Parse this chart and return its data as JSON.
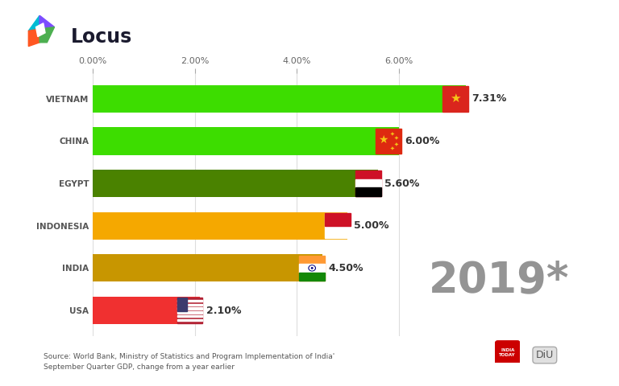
{
  "countries": [
    "VIETNAM",
    "CHINA",
    "EGYPT",
    "INDONESIA",
    "INDIA",
    "USA"
  ],
  "values": [
    7.31,
    6.0,
    5.6,
    5.0,
    4.5,
    2.1
  ],
  "labels": [
    "7.31%",
    "6.00%",
    "5.60%",
    "5.00%",
    "4.50%",
    "2.10%"
  ],
  "bar_colors": [
    "#3ddd00",
    "#3ddd00",
    "#4a8200",
    "#f5a800",
    "#c89600",
    "#f03030"
  ],
  "background_color": "#ffffff",
  "chart_bg": "#f5f5f5",
  "year_text": "2019*",
  "source_text": "Source: World Bank, Ministry of Statistics and Program Implementation of India'\nSeptember Quarter GDP, change from a year earlier",
  "xlim": [
    0,
    8.5
  ],
  "xticks": [
    0,
    2,
    4,
    6
  ],
  "xtick_labels": [
    "0.00%",
    "2.00%",
    "4.00%",
    "6.00%"
  ],
  "logo_colors": [
    "#00bcd4",
    "#7c4dff",
    "#ff5722",
    "#4caf50"
  ],
  "logo_text_color": "#1a1a2e",
  "year_color": "#888888",
  "label_color": "#333333",
  "tick_color": "#666666",
  "source_color": "#555555"
}
